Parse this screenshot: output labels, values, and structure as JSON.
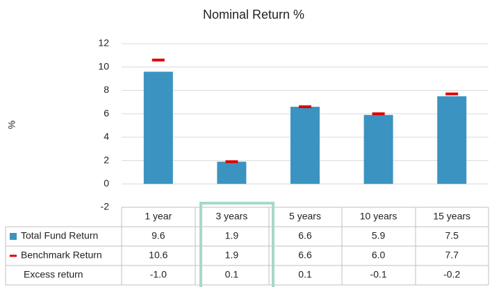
{
  "chart_data": {
    "type": "bar",
    "title": "Nominal Return %",
    "y_label": "%",
    "categories": [
      "1 year",
      "3 years",
      "5 years",
      "10 years",
      "15 years"
    ],
    "ylim": [
      -2,
      12
    ],
    "yticks": [
      -2,
      0,
      2,
      4,
      6,
      8,
      10,
      12
    ],
    "grid": true,
    "series": [
      {
        "name": "Total Fund Return",
        "color": "#3a93c0",
        "marker": "bar",
        "values": [
          9.6,
          1.9,
          6.6,
          5.9,
          7.5
        ]
      },
      {
        "name": "Benchmark Return",
        "color": "#e00000",
        "marker": "dash",
        "values": [
          10.6,
          1.9,
          6.6,
          6.0,
          7.7
        ],
        "value_labels": [
          "10.6",
          "1.9",
          "6.6",
          "6.0",
          "7.7"
        ]
      },
      {
        "name": "Excess return",
        "values": [
          -1.0,
          0.1,
          0.1,
          -0.1,
          -0.2
        ],
        "value_labels": [
          "-1.0",
          "0.1",
          "0.1",
          "-0.1",
          "-0.2"
        ]
      }
    ]
  }
}
